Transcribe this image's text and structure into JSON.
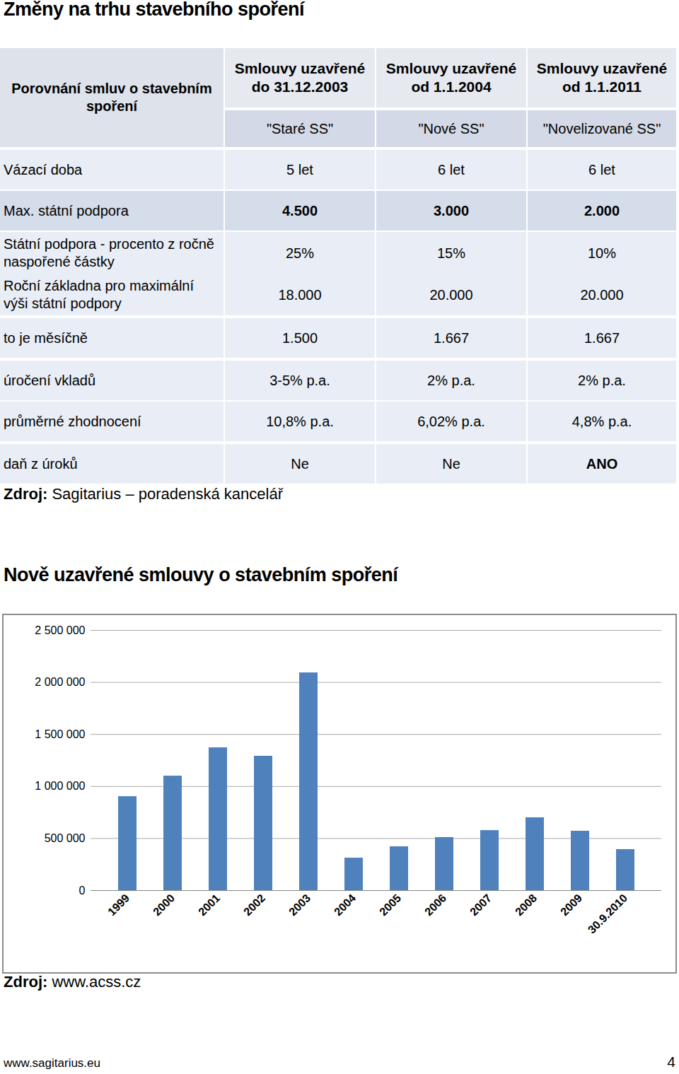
{
  "title": "Změny na trhu stavebního spoření",
  "table": {
    "corner": "Porovnání smluv o stavebním spoření",
    "columns": [
      {
        "heading": "Smlouvy uzavřené do 31.12.2003",
        "name": "\"Staré SS\""
      },
      {
        "heading": "Smlouvy uzavřené od 1.1.2004",
        "name": "\"Nové SS\""
      },
      {
        "heading": "Smlouvy uzavřené od 1.1.2011",
        "name": "\"Novelizované SS\""
      }
    ],
    "rows": [
      {
        "label": "Vázací doba",
        "cells": [
          "5 let",
          "6 let",
          "6 let"
        ]
      },
      {
        "label": "Max. státní podpora",
        "cells": [
          "4.500",
          "3.000",
          "2.000"
        ]
      },
      {
        "label": "Státní podpora - procento z ročně naspořené částky",
        "cells": [
          "25%",
          "15%",
          "10%"
        ]
      },
      {
        "label": "Roční základna pro maximální výši státní podpory",
        "cells": [
          "18.000",
          "20.000",
          "20.000"
        ]
      },
      {
        "label": "to je měsíčně",
        "cells": [
          "1.500",
          "1.667",
          "1.667"
        ]
      },
      {
        "label": "úročení vkladů",
        "cells": [
          "3-5% p.a.",
          "2% p.a.",
          "2% p.a."
        ]
      },
      {
        "label": "průměrné zhodnocení",
        "cells": [
          "10,8% p.a.",
          "6,02% p.a.",
          "4,8% p.a."
        ]
      },
      {
        "label": "daň z úroků",
        "cells": [
          "Ne",
          "Ne",
          "ANO"
        ]
      }
    ],
    "source": {
      "label": "Zdroj:",
      "text": "Sagitarius – poradenská kancelář"
    }
  },
  "chart_heading": "Nově uzavřené smlouvy o stavebním spoření",
  "chart_data": {
    "type": "bar",
    "categories": [
      "1999",
      "2000",
      "2001",
      "2002",
      "2003",
      "2004",
      "2005",
      "2006",
      "2007",
      "2008",
      "2009",
      "30.9.2010"
    ],
    "values": [
      903000,
      1100000,
      1372000,
      1291000,
      2092000,
      312000,
      421000,
      510000,
      577000,
      700000,
      571000,
      394000
    ],
    "color": "#4f81bd",
    "ylim": [
      0,
      2500000
    ],
    "yticks": [
      0,
      {
        "value": 500000,
        "label": "500 000"
      },
      {
        "value": 1000000,
        "label": "1 000 000"
      },
      {
        "value": 1500000,
        "label": "1 500 000"
      },
      {
        "value": 2000000,
        "label": "2 000 000"
      },
      {
        "value": 2500000,
        "label": "2 500 000"
      }
    ],
    "grid": true
  },
  "chart_source": {
    "label": "Zdroj:",
    "text": "www.acss.cz"
  },
  "footer": {
    "left": "www.sagitarius.eu",
    "right": "4"
  }
}
